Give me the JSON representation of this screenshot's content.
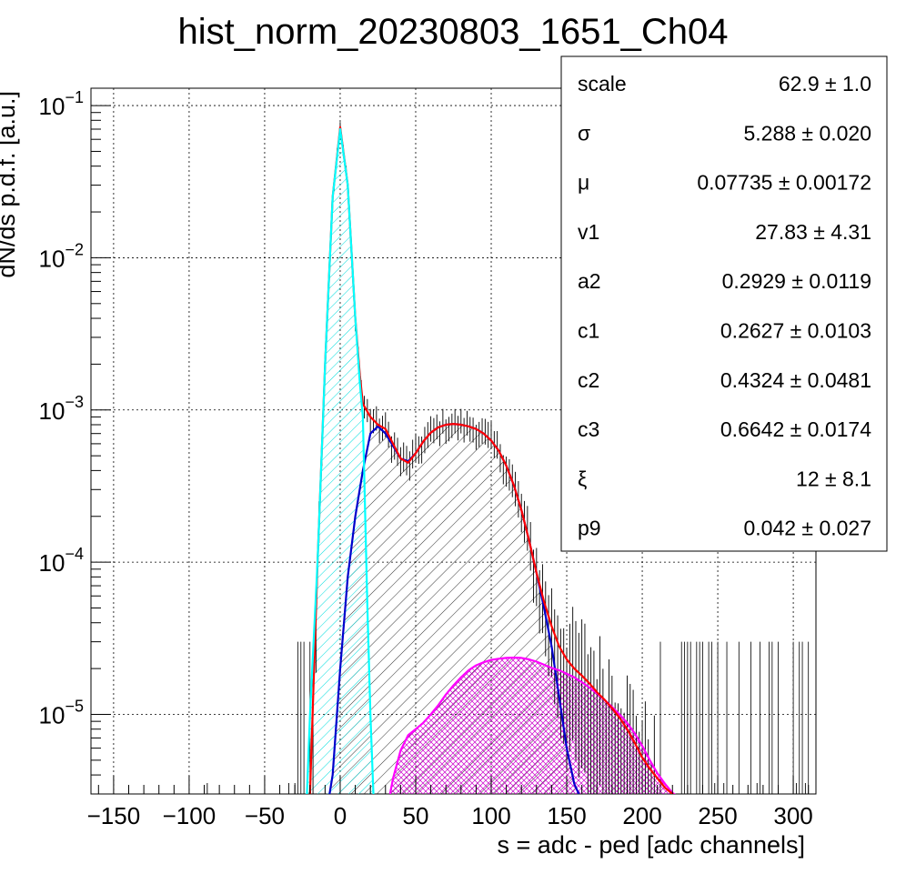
{
  "chart_data": {
    "type": "line",
    "title": "hist_norm_20230803_1651_Ch04",
    "xlabel": "s = adc - ped [adc channels]",
    "ylabel": "dN/ds p.d.f. [a.u.]",
    "xlim": [
      -165,
      315
    ],
    "ylim": [
      3e-06,
      0.13
    ],
    "yscale": "log",
    "grid": true,
    "x_ticks": [
      {
        "value": -150,
        "label": "−150"
      },
      {
        "value": -100,
        "label": "−100"
      },
      {
        "value": -50,
        "label": "−50"
      },
      {
        "value": 0,
        "label": "0"
      },
      {
        "value": 50,
        "label": "50"
      },
      {
        "value": 100,
        "label": "100"
      },
      {
        "value": 150,
        "label": "150"
      },
      {
        "value": 200,
        "label": "200"
      },
      {
        "value": 250,
        "label": "250"
      },
      {
        "value": 300,
        "label": "300"
      }
    ],
    "y_ticks": [
      {
        "value": 0.1,
        "base": "10",
        "exp": "−1"
      },
      {
        "value": 0.01,
        "base": "10",
        "exp": "−2"
      },
      {
        "value": 0.001,
        "base": "10",
        "exp": "−3"
      },
      {
        "value": 0.0001,
        "base": "10",
        "exp": "−4"
      },
      {
        "value": 1e-05,
        "base": "10",
        "exp": "−5"
      }
    ],
    "series": [
      {
        "color": "#ff0000",
        "x": [
          -20,
          -15,
          -10,
          -5,
          0,
          5,
          10,
          13,
          15,
          20,
          25,
          30,
          35,
          40,
          45,
          50,
          55,
          60,
          65,
          70,
          75,
          80,
          85,
          90,
          95,
          100,
          105,
          110,
          115,
          120,
          125,
          130,
          135,
          140,
          145,
          150,
          155,
          160,
          165,
          170,
          175,
          180,
          185,
          190,
          195,
          200,
          205,
          210,
          215,
          220,
          222
        ],
        "y": [
          3e-06,
          0.0001,
          0.002,
          0.025,
          0.072,
          0.03,
          0.004,
          0.0017,
          0.0011,
          0.0009,
          0.0008,
          0.00075,
          0.0006,
          0.00048,
          0.00045,
          0.00052,
          0.00062,
          0.00071,
          0.00077,
          0.0008,
          0.00081,
          0.0008,
          0.00078,
          0.00075,
          0.0007,
          0.00063,
          0.00054,
          0.00043,
          0.00032,
          0.00022,
          0.00014,
          8.5e-05,
          5.5e-05,
          3.8e-05,
          2.8e-05,
          2.3e-05,
          2e-05,
          1.8e-05,
          1.6e-05,
          1.4e-05,
          1.25e-05,
          1.1e-05,
          9.5e-06,
          8e-06,
          6.5e-06,
          5.2e-06,
          4.4e-06,
          3.8e-06,
          3.3e-06,
          3e-06,
          2.9e-06
        ]
      },
      {
        "color": "#00ffff",
        "x": [
          -22,
          -20,
          -15,
          -10,
          -5,
          0,
          5,
          10,
          13,
          15,
          18,
          20,
          22
        ],
        "y": [
          3e-06,
          1e-05,
          0.0001,
          0.002,
          0.025,
          0.07,
          0.03,
          0.004,
          0.0015,
          0.0009,
          5e-05,
          1e-05,
          3e-06
        ]
      },
      {
        "color": "#0000cc",
        "x": [
          -7,
          -5,
          0,
          5,
          10,
          15,
          20,
          25,
          30,
          35,
          40,
          45,
          50,
          55,
          60,
          65,
          70,
          75,
          80,
          85,
          90,
          95,
          100,
          105,
          110,
          115,
          120,
          125,
          130,
          135,
          140,
          145,
          150,
          155,
          158
        ],
        "y": [
          3e-06,
          4e-06,
          2e-05,
          8e-05,
          0.0002,
          0.0004,
          0.0007,
          0.00078,
          0.0007,
          0.00058,
          0.00048,
          0.00046,
          0.00052,
          0.00062,
          0.00071,
          0.00077,
          0.0008,
          0.00081,
          0.0008,
          0.00078,
          0.00075,
          0.0007,
          0.00063,
          0.00054,
          0.00043,
          0.00032,
          0.00022,
          0.00014,
          8.5e-05,
          5e-05,
          2.8e-05,
          1.3e-05,
          6e-06,
          3.5e-06,
          3e-06
        ]
      },
      {
        "color": "#ff00ff",
        "x": [
          33,
          35,
          40,
          45,
          50,
          55,
          60,
          65,
          70,
          75,
          80,
          85,
          90,
          95,
          100,
          105,
          110,
          115,
          120,
          125,
          130,
          135,
          140,
          145,
          150,
          155,
          160,
          165,
          170,
          175,
          180,
          185,
          190,
          195,
          200,
          205,
          210,
          215,
          220,
          222
        ],
        "y": [
          3e-06,
          3.8e-06,
          5.8e-06,
          7.3e-06,
          8e-06,
          8.8e-06,
          1e-05,
          1.15e-05,
          1.35e-05,
          1.55e-05,
          1.75e-05,
          1.95e-05,
          2.1e-05,
          2.2e-05,
          2.28e-05,
          2.32e-05,
          2.35e-05,
          2.36e-05,
          2.35e-05,
          2.3e-05,
          2.22e-05,
          2.12e-05,
          2.02e-05,
          1.95e-05,
          1.85e-05,
          1.75e-05,
          1.63e-05,
          1.5e-05,
          1.38e-05,
          1.25e-05,
          1.12e-05,
          1e-05,
          8.8e-06,
          7.5e-06,
          6.2e-06,
          5e-06,
          4.1e-06,
          3.5e-06,
          3.05e-06,
          2.95e-06
        ]
      }
    ],
    "stats_box": [
      {
        "name": "scale",
        "value": "62.9 ± 1.0"
      },
      {
        "name": "σ",
        "value": "5.288 ± 0.020"
      },
      {
        "name": "μ",
        "value": "0.07735 ± 0.00172"
      },
      {
        "name": "v1",
        "value": "27.83 ± 4.31"
      },
      {
        "name": "a2",
        "value": "0.2929 ± 0.0119"
      },
      {
        "name": "c1",
        "value": "0.2627 ± 0.0103"
      },
      {
        "name": "c2",
        "value": "0.4324 ± 0.0481"
      },
      {
        "name": "c3",
        "value": "0.6642 ± 0.0174"
      },
      {
        "name": "ξ",
        "value": "12 ± 8.1"
      },
      {
        "name": "p9",
        "value": "0.042 ± 0.027"
      }
    ]
  }
}
